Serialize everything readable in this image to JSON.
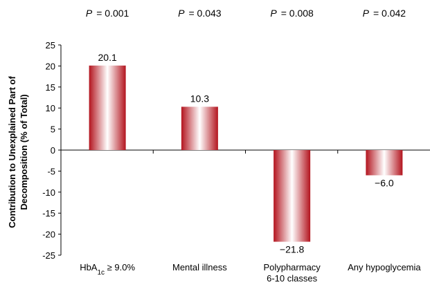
{
  "chart_data": {
    "type": "bar",
    "categories": [
      {
        "main": "HbA",
        "sub": "1c",
        "rest": " ≥ 9.0%"
      },
      {
        "main": "Mental illness"
      },
      {
        "main": "Polypharmacy",
        "line2": "6-10 classes"
      },
      {
        "main": "Any hypoglycemia"
      }
    ],
    "values": [
      20.1,
      10.3,
      -21.8,
      -6.0
    ],
    "data_labels": [
      "20.1",
      "10.3",
      "−21.8",
      "−6.0"
    ],
    "p_values": [
      {
        "label": "P",
        "value": "=  0.001"
      },
      {
        "label": "P",
        "value": "= 0.043"
      },
      {
        "label": "P",
        "value": "= 0.008"
      },
      {
        "label": "P",
        "value": "= 0.042"
      }
    ],
    "ylabel_lines": [
      "Contribution to Unexplained Part of",
      "Decomposition (% of Total)"
    ],
    "ylim": [
      -25,
      25
    ],
    "yticks": [
      25,
      20,
      15,
      10,
      5,
      0,
      -5,
      -10,
      -15,
      -20,
      -25
    ],
    "ytick_labels": [
      "25",
      "20",
      "15",
      "10",
      "5",
      "0",
      "-5",
      "-10",
      "-15",
      "-20",
      "-25"
    ],
    "grid": false,
    "bar_colors": {
      "dark": "#b3141e",
      "light": "#ffffff"
    }
  }
}
